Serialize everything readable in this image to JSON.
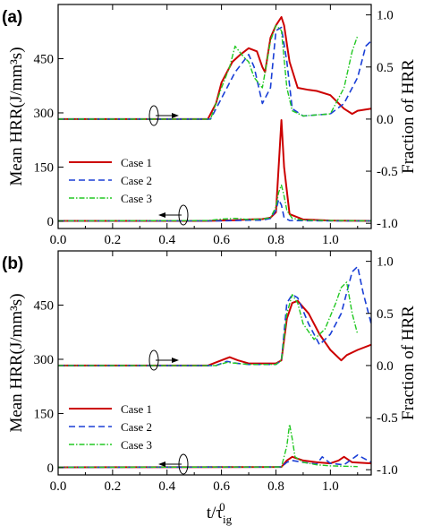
{
  "figure": {
    "xlabel_main": "t/τ",
    "xlabel_sub": "ig",
    "xlabel_sup": "0",
    "arrow_labels": []
  },
  "chart_data": [
    {
      "type": "line",
      "panel_label": "(a)",
      "ylabel_left": "Mean HRR(J/mm³s)",
      "ylabel_right": "Fraction of HRR",
      "xlim": [
        0.0,
        1.15
      ],
      "ylim_left": [
        -20,
        600
      ],
      "ylim_right": [
        -1.05,
        1.1
      ],
      "x_ticks": [
        "0.0",
        "0.2",
        "0.4",
        "0.6",
        "0.8",
        "1.0"
      ],
      "x_tick_values": [
        0.0,
        0.2,
        0.4,
        0.6,
        0.8,
        1.0
      ],
      "y_ticks_left": [
        "0",
        "150",
        "300",
        "450"
      ],
      "y_tick_values_left": [
        0,
        150,
        300,
        450
      ],
      "y_ticks_right": [
        "-1.0",
        "-0.5",
        "0.0",
        "0.5",
        "1.0"
      ],
      "y_tick_values_right": [
        -1.0,
        -0.5,
        0.0,
        0.5,
        1.0
      ],
      "legend": {
        "position": "lower-left",
        "entries": [
          "Case 1",
          "Case 2",
          "Case 3"
        ]
      },
      "series": [
        {
          "name": "Case 1",
          "axis": "left",
          "color": "#cc0000",
          "dash": "",
          "width": 2,
          "x": [
            0,
            0.55,
            0.65,
            0.7,
            0.75,
            0.78,
            0.8,
            0.81,
            0.82,
            0.83,
            0.85,
            0.9,
            1.0,
            1.15
          ],
          "y": [
            1,
            1,
            3,
            5,
            6,
            10,
            25,
            150,
            280,
            150,
            20,
            5,
            2,
            1
          ]
        },
        {
          "name": "Case 2",
          "axis": "left",
          "color": "#1a3fd6",
          "dash": "7,4",
          "width": 1.6,
          "x": [
            0,
            0.6,
            0.7,
            0.75,
            0.78,
            0.8,
            0.81,
            0.82,
            0.83,
            0.85,
            1.0,
            1.15
          ],
          "y": [
            1,
            1,
            3,
            3,
            8,
            30,
            60,
            45,
            10,
            2,
            1,
            1
          ]
        },
        {
          "name": "Case 3",
          "axis": "left",
          "color": "#22c822",
          "dash": "6,2,1.5,2",
          "width": 1.4,
          "x": [
            0,
            0.55,
            0.6,
            0.65,
            0.7,
            0.75,
            0.78,
            0.8,
            0.81,
            0.82,
            0.83,
            0.84,
            0.86,
            0.9,
            1.0,
            1.15
          ],
          "y": [
            1,
            2,
            6,
            8,
            5,
            6,
            10,
            40,
            80,
            100,
            70,
            30,
            8,
            3,
            2,
            1
          ]
        },
        {
          "name": "Case 1 fraction",
          "axis": "right",
          "color": "#cc0000",
          "dash": "",
          "width": 2,
          "x": [
            0,
            0.55,
            0.58,
            0.6,
            0.64,
            0.67,
            0.7,
            0.73,
            0.75,
            0.76,
            0.78,
            0.8,
            0.82,
            0.83,
            0.85,
            0.88,
            0.92,
            0.95,
            1.0,
            1.05,
            1.08,
            1.1,
            1.15
          ],
          "y": [
            0,
            0,
            0.15,
            0.35,
            0.55,
            0.62,
            0.68,
            0.65,
            0.5,
            0.45,
            0.78,
            0.9,
            0.98,
            0.9,
            0.55,
            0.3,
            0.28,
            0.27,
            0.23,
            0.1,
            0.05,
            0.08,
            0.1
          ]
        },
        {
          "name": "Case 2 fraction",
          "axis": "right",
          "color": "#1a3fd6",
          "dash": "7,4",
          "width": 1.6,
          "x": [
            0,
            0.56,
            0.6,
            0.65,
            0.7,
            0.72,
            0.75,
            0.78,
            0.8,
            0.82,
            0.84,
            0.86,
            0.9,
            1.0,
            1.05,
            1.1,
            1.13,
            1.15
          ],
          "y": [
            0,
            0,
            0.2,
            0.45,
            0.62,
            0.5,
            0.15,
            0.3,
            0.85,
            0.88,
            0.55,
            0.1,
            0.03,
            0.05,
            0.15,
            0.4,
            0.7,
            0.75
          ]
        },
        {
          "name": "Case 3 fraction",
          "axis": "right",
          "color": "#22c822",
          "dash": "6,2,1.5,2",
          "width": 1.4,
          "x": [
            0,
            0.56,
            0.6,
            0.63,
            0.65,
            0.68,
            0.7,
            0.72,
            0.75,
            0.78,
            0.8,
            0.82,
            0.84,
            0.86,
            0.9,
            1.0,
            1.05,
            1.08,
            1.1
          ],
          "y": [
            0,
            0,
            0.3,
            0.5,
            0.7,
            0.6,
            0.55,
            0.4,
            0.3,
            0.75,
            0.9,
            0.85,
            0.3,
            0.08,
            0.03,
            0.05,
            0.3,
            0.65,
            0.8
          ]
        }
      ]
    },
    {
      "type": "line",
      "panel_label": "(b)",
      "ylabel_left": "Mean HRR(J/mm³s)",
      "ylabel_right": "Fraction of HRR",
      "xlim": [
        0.0,
        1.15
      ],
      "ylim_left": [
        -20,
        600
      ],
      "ylim_right": [
        -1.05,
        1.1
      ],
      "x_ticks": [
        "0.0",
        "0.2",
        "0.4",
        "0.6",
        "0.8",
        "1.0"
      ],
      "x_tick_values": [
        0.0,
        0.2,
        0.4,
        0.6,
        0.8,
        1.0
      ],
      "y_ticks_left": [
        "0",
        "150",
        "300",
        "450"
      ],
      "y_tick_values_left": [
        0,
        150,
        300,
        450
      ],
      "y_ticks_right": [
        "-1.0",
        "-0.5",
        "0.0",
        "0.5",
        "1.0"
      ],
      "y_tick_values_right": [
        -1.0,
        -0.5,
        0.0,
        0.5,
        1.0
      ],
      "legend": {
        "position": "lower-left",
        "entries": [
          "Case 1",
          "Case 2",
          "Case 3"
        ]
      },
      "series": [
        {
          "name": "Case 1",
          "axis": "left",
          "color": "#cc0000",
          "dash": "",
          "width": 2,
          "x": [
            0,
            0.82,
            0.84,
            0.86,
            0.9,
            0.95,
            1.0,
            1.03,
            1.05,
            1.08,
            1.15
          ],
          "y": [
            1,
            2,
            20,
            30,
            20,
            15,
            12,
            20,
            30,
            15,
            12
          ]
        },
        {
          "name": "Case 2",
          "axis": "left",
          "color": "#1a3fd6",
          "dash": "7,4",
          "width": 1.6,
          "x": [
            0,
            0.82,
            0.84,
            0.86,
            0.9,
            0.95,
            0.97,
            1.0,
            1.05,
            1.1,
            1.15
          ],
          "y": [
            1,
            2,
            15,
            20,
            15,
            10,
            30,
            12,
            8,
            35,
            15
          ]
        },
        {
          "name": "Case 3",
          "axis": "left",
          "color": "#22c822",
          "dash": "6,2,1.5,2",
          "width": 1.4,
          "x": [
            0,
            0.82,
            0.84,
            0.85,
            0.86,
            0.87,
            0.9,
            0.95,
            1.0,
            1.05,
            1.1
          ],
          "y": [
            1,
            2,
            60,
            120,
            80,
            30,
            15,
            8,
            5,
            4,
            3
          ]
        },
        {
          "name": "Case 1 fraction",
          "axis": "right",
          "color": "#cc0000",
          "dash": "",
          "width": 2,
          "x": [
            0,
            0.55,
            0.6,
            0.63,
            0.66,
            0.7,
            0.75,
            0.8,
            0.82,
            0.84,
            0.86,
            0.88,
            0.92,
            0.96,
            1.0,
            1.04,
            1.06,
            1.1,
            1.15
          ],
          "y": [
            0,
            0,
            0.05,
            0.08,
            0.05,
            0.02,
            0.02,
            0.02,
            0.05,
            0.45,
            0.6,
            0.62,
            0.5,
            0.3,
            0.15,
            0.05,
            0.1,
            0.15,
            0.2
          ]
        },
        {
          "name": "Case 2 fraction",
          "axis": "right",
          "color": "#1a3fd6",
          "dash": "7,4",
          "width": 1.6,
          "x": [
            0,
            0.58,
            0.62,
            0.66,
            0.7,
            0.8,
            0.82,
            0.84,
            0.86,
            0.88,
            0.92,
            0.96,
            1.0,
            1.04,
            1.08,
            1.1,
            1.12,
            1.15
          ],
          "y": [
            0,
            0,
            0.04,
            0.02,
            0.01,
            0.01,
            0.05,
            0.6,
            0.68,
            0.65,
            0.4,
            0.2,
            0.3,
            0.5,
            0.9,
            0.95,
            0.7,
            0.4
          ]
        },
        {
          "name": "Case 3 fraction",
          "axis": "right",
          "color": "#22c822",
          "dash": "6,2,1.5,2",
          "width": 1.4,
          "x": [
            0,
            0.58,
            0.62,
            0.66,
            0.7,
            0.8,
            0.82,
            0.84,
            0.86,
            0.88,
            0.9,
            0.94,
            0.98,
            1.02,
            1.04,
            1.06,
            1.08,
            1.1
          ],
          "y": [
            0,
            0,
            0.03,
            0.02,
            0.01,
            0.01,
            0.05,
            0.5,
            0.68,
            0.6,
            0.4,
            0.25,
            0.35,
            0.6,
            0.75,
            0.8,
            0.5,
            0.3
          ]
        }
      ]
    }
  ]
}
